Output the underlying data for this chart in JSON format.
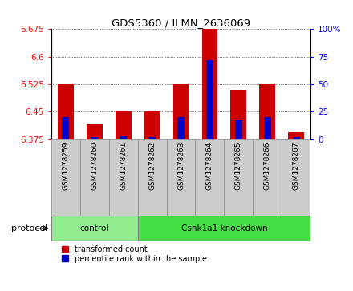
{
  "title": "GDS5360 / ILMN_2636069",
  "samples": [
    "GSM1278259",
    "GSM1278260",
    "GSM1278261",
    "GSM1278262",
    "GSM1278263",
    "GSM1278264",
    "GSM1278265",
    "GSM1278266",
    "GSM1278267"
  ],
  "transformed_counts": [
    6.525,
    6.415,
    6.45,
    6.45,
    6.525,
    6.675,
    6.51,
    6.525,
    6.395
  ],
  "percentile_ranks": [
    20,
    2,
    3,
    2,
    20,
    72,
    17,
    20,
    2
  ],
  "ylim_left": [
    6.375,
    6.675
  ],
  "ylim_right": [
    0,
    100
  ],
  "yticks_left": [
    6.375,
    6.45,
    6.525,
    6.6,
    6.675
  ],
  "yticks_right": [
    0,
    25,
    50,
    75,
    100
  ],
  "groups": [
    {
      "label": "control",
      "indices": [
        0,
        1,
        2
      ],
      "color": "#90EE90"
    },
    {
      "label": "Csnk1a1 knockdown",
      "indices": [
        3,
        4,
        5,
        6,
        7,
        8
      ],
      "color": "#44DD44"
    }
  ],
  "protocol_label": "protocol",
  "bar_color_red": "#CC0000",
  "bar_color_blue": "#0000CC",
  "bar_width": 0.55,
  "blue_bar_width": 0.25,
  "base_value": 6.375,
  "grid_color": "#888888",
  "background_color": "#FFFFFF",
  "tick_area_color": "#CCCCCC",
  "legend_red": "transformed count",
  "legend_blue": "percentile rank within the sample"
}
